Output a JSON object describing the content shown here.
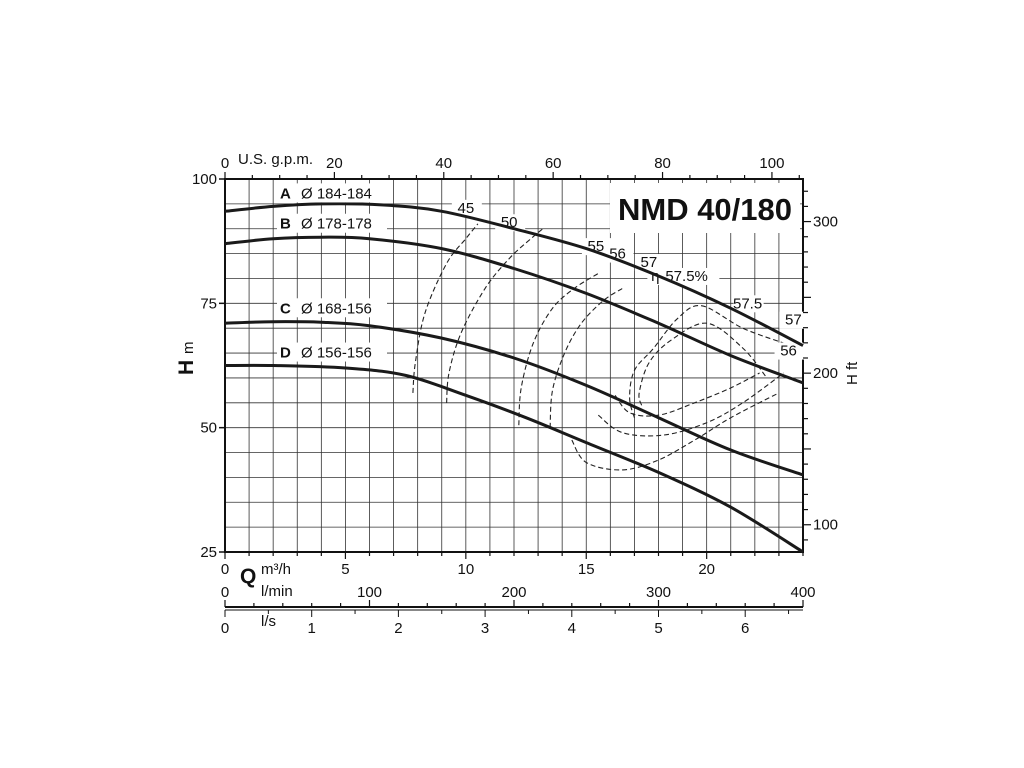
{
  "chart_data": {
    "type": "line",
    "title": "NMD 40/180",
    "ylabel_left": "H",
    "ylabel_left_unit": "m",
    "ylabel_right": "H ft",
    "xlabel_symbol": "Q",
    "xlabel_m3h": "m³/h",
    "xlabel_lmin": "l/min",
    "xlabel_ls": "l/s",
    "top_axis_label": "U.S. g.p.m.",
    "xlim_m3h": [
      0,
      24
    ],
    "ylim_m": [
      25,
      100
    ],
    "grid": true,
    "y_ticks_m": [
      "100",
      "75",
      "50",
      "25"
    ],
    "y_ticks_ft": [
      "300",
      "200",
      "100"
    ],
    "x_ticks_m3h": [
      "0",
      "5",
      "10",
      "15",
      "20"
    ],
    "x_ticks_lmin": [
      "0",
      "100",
      "200",
      "300",
      "400"
    ],
    "x_ticks_ls": [
      "0",
      "1",
      "2",
      "3",
      "4",
      "5",
      "6"
    ],
    "x_ticks_gpm": [
      "0",
      "20",
      "40",
      "60",
      "80",
      "100"
    ],
    "series": [
      {
        "letter": "A",
        "name": "Ø 184-184",
        "x": [
          0,
          2,
          4,
          6.5,
          9,
          12,
          15,
          18,
          21,
          24
        ],
        "y": [
          93.5,
          94.5,
          95,
          94.8,
          93.5,
          90,
          86,
          80.5,
          74,
          66.5
        ]
      },
      {
        "letter": "B",
        "name": "Ø 178-178",
        "x": [
          0,
          2,
          4,
          6,
          9,
          12,
          15,
          18,
          21,
          24
        ],
        "y": [
          87,
          88,
          88.3,
          88,
          86,
          82,
          77,
          71,
          64.5,
          59
        ]
      },
      {
        "letter": "C",
        "name": "Ø 168-156",
        "x": [
          0,
          2,
          4,
          6,
          9,
          12,
          15,
          18,
          21,
          24
        ],
        "y": [
          71,
          71.3,
          71.2,
          70.5,
          68,
          64,
          58.5,
          52,
          45.5,
          40.5
        ]
      },
      {
        "letter": "D",
        "name": "Ø 156-156",
        "x": [
          0,
          2,
          5,
          7.5,
          10,
          12.5,
          15,
          18,
          21,
          24
        ],
        "y": [
          62.5,
          62.5,
          62,
          60.5,
          56.5,
          52,
          47,
          41,
          34,
          25
        ]
      }
    ],
    "efficiency_curves": [
      {
        "label": "45",
        "x": [
          7.8,
          7.9,
          8.3,
          9.2,
          10,
          10.5
        ],
        "y": [
          57,
          63,
          73,
          83,
          88,
          91
        ]
      },
      {
        "label": "50",
        "x": [
          9.2,
          9.3,
          9.8,
          10.8,
          11.8,
          12.7,
          13.2
        ],
        "y": [
          55,
          61,
          69,
          78,
          84,
          88,
          90
        ]
      },
      {
        "label": "55",
        "x": [
          12.2,
          12.3,
          12.8,
          13.6,
          14.5,
          15.5
        ],
        "y": [
          50.5,
          58,
          67,
          74,
          78,
          81
        ]
      },
      {
        "label": "56",
        "x": [
          13.5,
          13.6,
          14.1,
          14.8,
          15.7,
          16.5
        ],
        "y": [
          50,
          57.5,
          65,
          71,
          75.5,
          78
        ]
      },
      {
        "label": "57",
        "x": [
          17,
          16.8,
          17,
          17.8,
          18.8,
          19.8,
          21.5,
          23.2
        ],
        "y": [
          52,
          56,
          61.5,
          66,
          72,
          74.5,
          70,
          67
        ]
      },
      {
        "label": "57.5%",
        "prefix": "η",
        "x": [
          17.3,
          17.2,
          17.6,
          18.5,
          20,
          21.5,
          22.5
        ],
        "y": [
          54.5,
          57,
          63,
          67.5,
          71,
          66,
          60
        ]
      },
      {
        "label": "57.5",
        "x": [
          16.2,
          16.8,
          18,
          19.5,
          21,
          22.2
        ],
        "y": [
          56.5,
          53,
          52.5,
          55,
          58,
          61
        ]
      },
      {
        "label": "56",
        "x": [
          14.4,
          15,
          16.5,
          18,
          19.5,
          21,
          23
        ],
        "y": [
          47.5,
          43,
          41.5,
          43.5,
          47.5,
          52,
          57
        ]
      },
      {
        "label": "57",
        "x": [
          15.5,
          16.5,
          18.2,
          20,
          21.5,
          23.2
        ],
        "y": [
          52.5,
          49,
          48.5,
          51,
          55,
          61
        ]
      }
    ]
  }
}
